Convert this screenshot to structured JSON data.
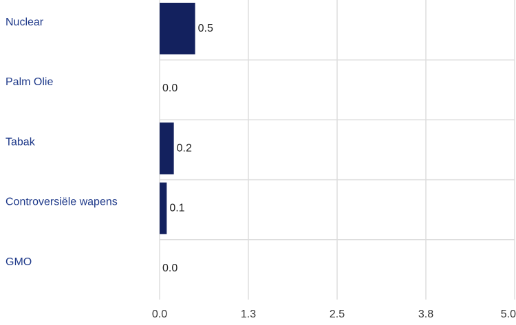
{
  "chart_data": {
    "type": "bar",
    "orientation": "horizontal",
    "categories": [
      "Nuclear",
      "Palm Olie",
      "Tabak",
      "Controversiële wapens",
      "GMO"
    ],
    "values": [
      0.5,
      0.0,
      0.2,
      0.1,
      0.0
    ],
    "data_labels": [
      "0.5",
      "0.0",
      "0.2",
      "0.1",
      "0.0"
    ],
    "x_ticks": [
      0.0,
      1.25,
      2.5,
      3.75,
      5.0
    ],
    "x_tick_labels": [
      "0.0",
      "1.3",
      "2.5",
      "3.8",
      "5.0"
    ],
    "xlim": [
      0,
      5.0
    ],
    "title": "",
    "xlabel": "",
    "ylabel": "",
    "grid": true,
    "legend": "none",
    "colors": {
      "bar": "#13215e",
      "grid": "#dddddd",
      "text": "#1f3a8a",
      "tick_text": "#333333",
      "value_text": "#222222"
    }
  }
}
